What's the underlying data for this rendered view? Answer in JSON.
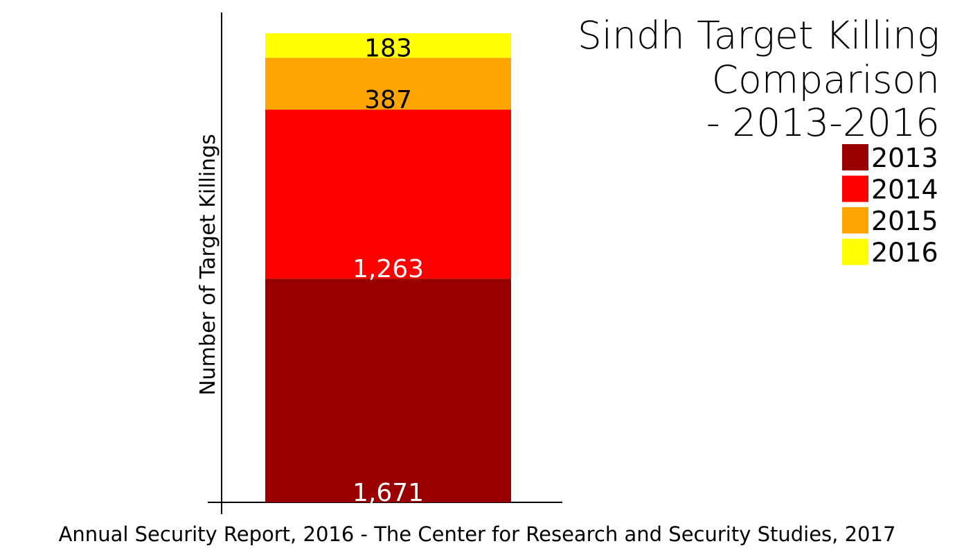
{
  "chart_data": {
    "type": "bar",
    "stacked": true,
    "title_lines": [
      "Sindh Target Killing",
      "Comparison",
      "- 2013-2016"
    ],
    "xlabel": "",
    "ylabel": "Number of Target Killings",
    "categories": [
      ""
    ],
    "series": [
      {
        "name": "2013",
        "values": [
          1671
        ],
        "label": "1,671",
        "color": "#990000",
        "label_color": "#ffffff"
      },
      {
        "name": "2014",
        "values": [
          1263
        ],
        "label": "1,263",
        "color": "#ff0000",
        "label_color": "#ffffff"
      },
      {
        "name": "2015",
        "values": [
          387
        ],
        "label": "387",
        "color": "#ffa500",
        "label_color": "#000000"
      },
      {
        "name": "2016",
        "values": [
          183
        ],
        "label": "183",
        "color": "#ffff00",
        "label_color": "#000000"
      }
    ],
    "ylim": [
      0,
      3504
    ],
    "legend_position": "right",
    "grid": false
  },
  "caption": "Annual Security Report, 2016 - The Center for Research and Security Studies, 2017"
}
